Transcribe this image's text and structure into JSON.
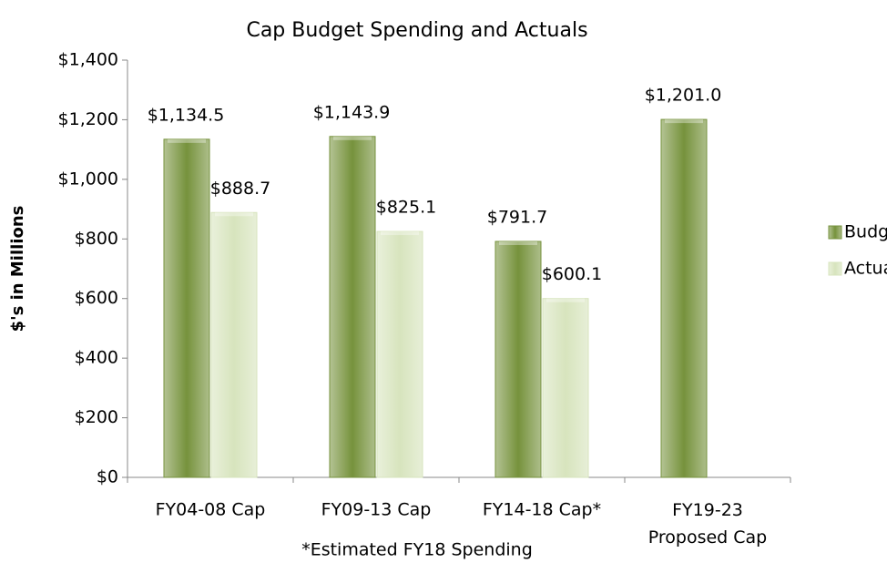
{
  "chart_data": {
    "type": "bar",
    "title": "Cap Budget Spending and Actuals",
    "y_label": "$'s in Millions",
    "annotation": "*Estimated FY18 Spending",
    "categories": [
      "FY04-08 Cap",
      "FY09-13 Cap",
      "FY14-18 Cap*",
      "FY19-23\nProposed Cap"
    ],
    "series": [
      {
        "name": "Budget",
        "color": "#76923c",
        "values": [
          1134.5,
          1143.9,
          791.7,
          1201.0
        ],
        "value_labels": [
          "$1,134.5",
          "$1,143.9",
          "$791.7",
          "$1,201.0"
        ]
      },
      {
        "name": "Actuals",
        "color": "#d7e4bd",
        "values": [
          888.7,
          825.1,
          600.1,
          null
        ],
        "value_labels": [
          "$888.7",
          "$825.1",
          "$600.1",
          null
        ]
      }
    ],
    "ylim": [
      0,
      1400
    ],
    "yticks": [
      {
        "value": 0,
        "label": "$0"
      },
      {
        "value": 200,
        "label": "$200"
      },
      {
        "value": 400,
        "label": "$400"
      },
      {
        "value": 600,
        "label": "$600"
      },
      {
        "value": 800,
        "label": "$800"
      },
      {
        "value": 1000,
        "label": "$1,000"
      },
      {
        "value": 1200,
        "label": "$1,200"
      },
      {
        "value": 1400,
        "label": "$1,400"
      }
    ],
    "legend": "right"
  }
}
